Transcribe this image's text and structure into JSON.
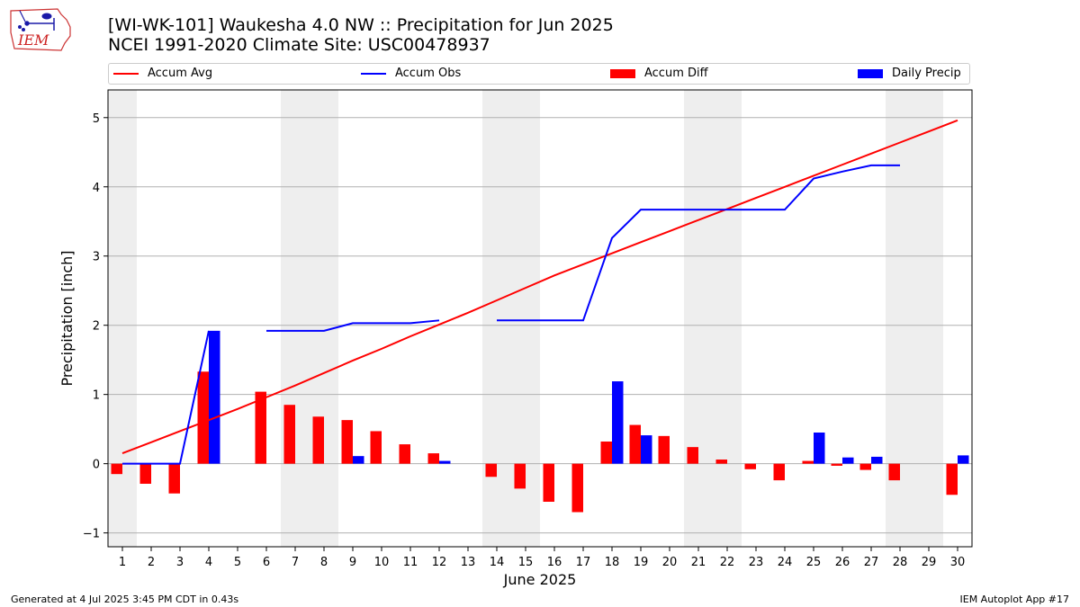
{
  "title_line1": "[WI-WK-101] Waukesha 4.0 NW :: Precipitation for Jun 2025",
  "title_line2": "NCEI 1991-2020 Climate Site: USC00478937",
  "logo_text": "IEM",
  "footer_left": "Generated at 4 Jul 2025 3:45 PM CDT in 0.43s",
  "footer_right": "IEM Autoplot App #17",
  "legend": [
    {
      "label": "Accum Avg",
      "kind": "line",
      "color": "#ff0000"
    },
    {
      "label": "Accum Obs",
      "kind": "line",
      "color": "#0000ff"
    },
    {
      "label": "Accum Diff",
      "kind": "bar",
      "color": "#ff0000"
    },
    {
      "label": "Daily Precip",
      "kind": "bar",
      "color": "#0000ff"
    }
  ],
  "chart_data": {
    "type": "bar",
    "xlabel": "June 2025",
    "ylabel": "Precipitation [inch]",
    "xlim": [
      0.5,
      30.5
    ],
    "ylim": [
      -1.2,
      5.4
    ],
    "yticks": [
      -1,
      0,
      1,
      2,
      3,
      4,
      5
    ],
    "grid": "horizontal",
    "legend_position": "top",
    "weekend_days": [
      1,
      7,
      8,
      14,
      15,
      21,
      22,
      28,
      29
    ],
    "weekend_color": "#eeeeee",
    "x": [
      1,
      2,
      3,
      4,
      5,
      6,
      7,
      8,
      9,
      10,
      11,
      12,
      13,
      14,
      15,
      16,
      17,
      18,
      19,
      20,
      21,
      22,
      23,
      24,
      25,
      26,
      27,
      28,
      29,
      30
    ],
    "series": [
      {
        "name": "Accum Avg",
        "kind": "line",
        "color": "#ff0000",
        "values": [
          0.15,
          0.31,
          0.47,
          0.63,
          0.79,
          0.96,
          1.13,
          1.31,
          1.49,
          1.66,
          1.84,
          2.01,
          2.18,
          2.36,
          2.54,
          2.72,
          2.88,
          3.04,
          3.2,
          3.36,
          3.52,
          3.68,
          3.84,
          4.0,
          4.16,
          4.32,
          4.48,
          4.64,
          4.8,
          4.96
        ]
      },
      {
        "name": "Accum Obs",
        "kind": "line",
        "color": "#0000ff",
        "values": [
          0.0,
          0.0,
          0.0,
          1.92,
          null,
          1.92,
          1.92,
          1.92,
          2.03,
          2.03,
          2.03,
          2.07,
          null,
          2.07,
          2.07,
          2.07,
          2.07,
          3.26,
          3.67,
          3.67,
          3.67,
          3.67,
          3.67,
          3.67,
          4.12,
          4.22,
          4.31,
          4.31,
          null,
          null
        ]
      },
      {
        "name": "Accum Diff",
        "kind": "bar",
        "color": "#ff0000",
        "values": [
          -0.15,
          -0.29,
          -0.43,
          1.33,
          null,
          1.04,
          0.85,
          0.68,
          0.63,
          0.47,
          0.28,
          0.15,
          null,
          -0.19,
          -0.36,
          -0.55,
          -0.7,
          0.32,
          0.56,
          0.4,
          0.24,
          0.06,
          -0.08,
          -0.24,
          0.04,
          -0.03,
          -0.09,
          -0.24,
          null,
          -0.45
        ]
      },
      {
        "name": "Daily Precip",
        "kind": "bar",
        "color": "#0000ff",
        "values": [
          0.0,
          0.0,
          0.0,
          1.92,
          null,
          0.0,
          0.0,
          0.0,
          0.11,
          0.0,
          0.0,
          0.04,
          null,
          0.0,
          0.0,
          0.0,
          0.0,
          1.19,
          0.41,
          0.0,
          0.0,
          0.0,
          0.0,
          0.0,
          0.45,
          0.09,
          0.1,
          0.0,
          null,
          0.12
        ]
      }
    ]
  }
}
